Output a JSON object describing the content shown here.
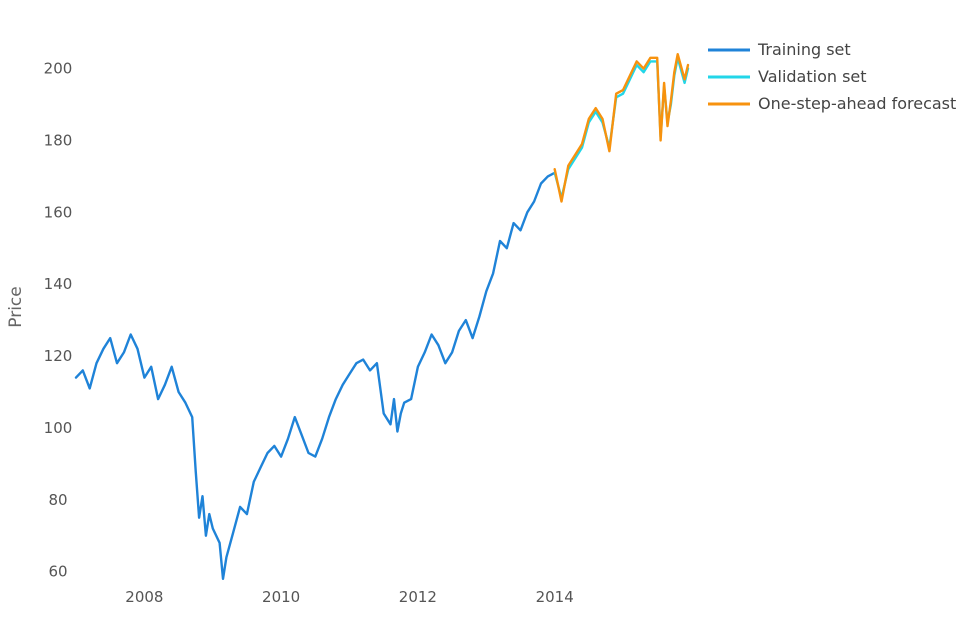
{
  "chart_data": {
    "type": "line",
    "title": "",
    "xlabel": "",
    "ylabel": "Price",
    "xlim": [
      2007.0,
      2015.95
    ],
    "ylim": [
      56,
      206
    ],
    "x_ticks": [
      "2008",
      "2010",
      "2012",
      "2014"
    ],
    "y_ticks": [
      "60",
      "80",
      "100",
      "120",
      "140",
      "160",
      "180",
      "200"
    ],
    "grid": false,
    "legend_position": "top-right",
    "series": [
      {
        "name": "Training set",
        "color": "#1f83d8",
        "x": [
          2007.0,
          2007.1,
          2007.2,
          2007.3,
          2007.4,
          2007.5,
          2007.6,
          2007.7,
          2007.8,
          2007.9,
          2008.0,
          2008.1,
          2008.2,
          2008.3,
          2008.4,
          2008.5,
          2008.6,
          2008.7,
          2008.75,
          2008.8,
          2008.85,
          2008.9,
          2008.95,
          2009.0,
          2009.1,
          2009.15,
          2009.2,
          2009.3,
          2009.4,
          2009.5,
          2009.6,
          2009.7,
          2009.8,
          2009.9,
          2010.0,
          2010.1,
          2010.2,
          2010.3,
          2010.4,
          2010.5,
          2010.6,
          2010.7,
          2010.8,
          2010.9,
          2011.0,
          2011.1,
          2011.2,
          2011.3,
          2011.4,
          2011.5,
          2011.6,
          2011.65,
          2011.7,
          2011.75,
          2011.8,
          2011.9,
          2012.0,
          2012.1,
          2012.2,
          2012.3,
          2012.4,
          2012.5,
          2012.6,
          2012.7,
          2012.8,
          2012.9,
          2013.0,
          2013.1,
          2013.2,
          2013.3,
          2013.4,
          2013.5,
          2013.6,
          2013.7,
          2013.8,
          2013.9,
          2014.0
        ],
        "values": [
          114,
          116,
          111,
          118,
          122,
          125,
          118,
          121,
          126,
          122,
          114,
          117,
          108,
          112,
          117,
          110,
          107,
          103,
          88,
          75,
          81,
          70,
          76,
          72,
          68,
          58,
          64,
          71,
          78,
          76,
          85,
          89,
          93,
          95,
          92,
          97,
          103,
          98,
          93,
          92,
          97,
          103,
          108,
          112,
          115,
          118,
          119,
          116,
          118,
          104,
          101,
          108,
          99,
          104,
          107,
          108,
          117,
          121,
          126,
          123,
          118,
          121,
          127,
          130,
          125,
          131,
          138,
          143,
          152,
          150,
          157,
          155,
          160,
          163,
          168,
          170,
          171
        ]
      },
      {
        "name": "Validation set",
        "color": "#22d6e8",
        "x": [
          2014.0,
          2014.1,
          2014.2,
          2014.3,
          2014.4,
          2014.5,
          2014.6,
          2014.7,
          2014.8,
          2014.9,
          2015.0,
          2015.1,
          2015.2,
          2015.3,
          2015.4,
          2015.5,
          2015.55,
          2015.6,
          2015.65,
          2015.7,
          2015.75,
          2015.8,
          2015.9,
          2015.95
        ],
        "values": [
          171,
          164,
          172,
          175,
          178,
          185,
          188,
          185,
          178,
          192,
          193,
          197,
          201,
          199,
          202,
          202,
          181,
          195,
          185,
          190,
          198,
          203,
          196,
          200
        ]
      },
      {
        "name": "One-step-ahead forecast",
        "color": "#f7920e",
        "x": [
          2014.0,
          2014.1,
          2014.2,
          2014.3,
          2014.4,
          2014.5,
          2014.6,
          2014.7,
          2014.8,
          2014.9,
          2015.0,
          2015.1,
          2015.2,
          2015.3,
          2015.4,
          2015.5,
          2015.55,
          2015.6,
          2015.65,
          2015.7,
          2015.75,
          2015.8,
          2015.9,
          2015.95
        ],
        "values": [
          172,
          163,
          173,
          176,
          179,
          186,
          189,
          186,
          177,
          193,
          194,
          198,
          202,
          200,
          203,
          203,
          180,
          196,
          184,
          191,
          199,
          204,
          197,
          201
        ]
      }
    ]
  }
}
